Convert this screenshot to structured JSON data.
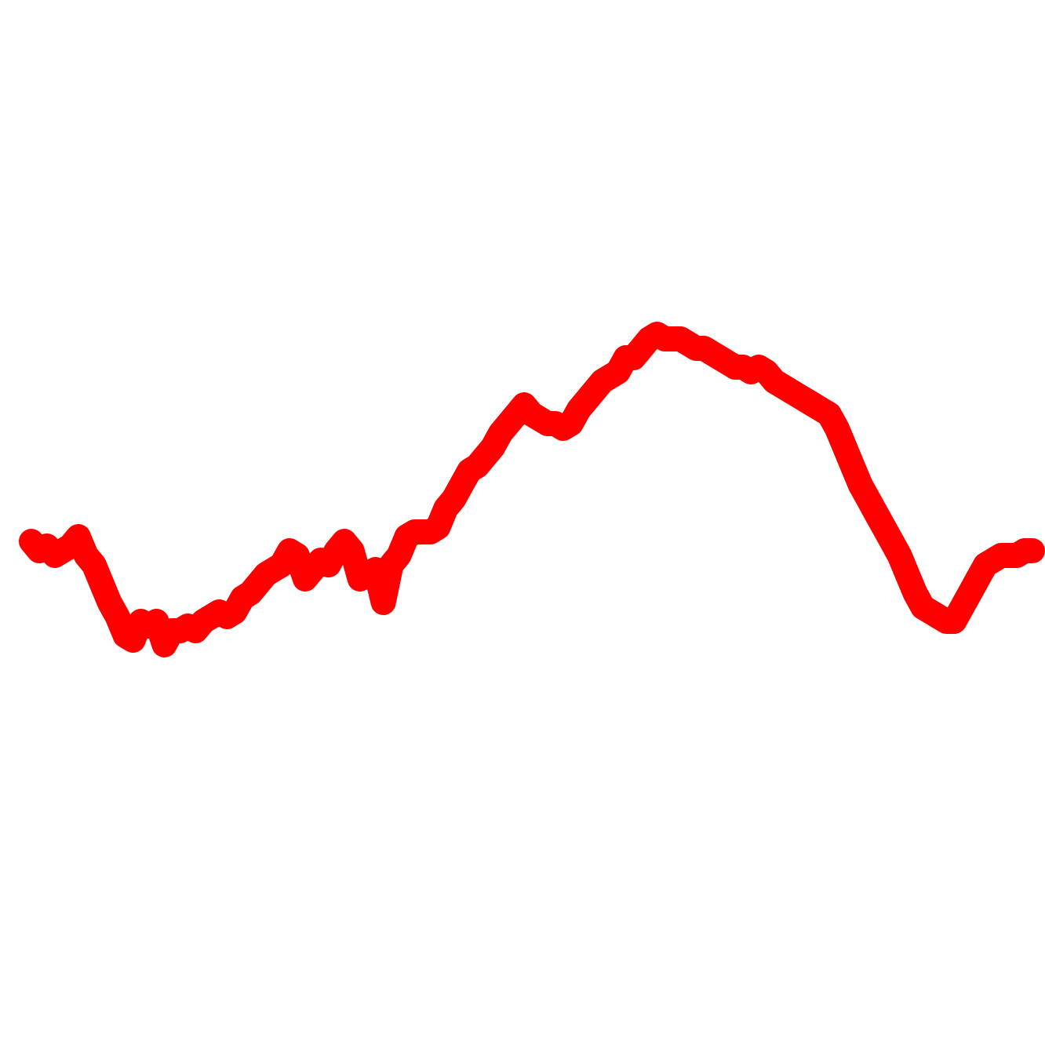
{
  "chart_data": {
    "type": "line",
    "title": "",
    "xlabel": "",
    "ylabel": "",
    "grid": false,
    "axes_visible": false,
    "line_color": "#ff0000",
    "xlim": [
      0,
      130
    ],
    "ylim": [
      -1.0,
      1.0
    ],
    "series": [
      {
        "values": [
          -0.05,
          -0.07,
          -0.06,
          -0.08,
          -0.07,
          -0.06,
          -0.04,
          -0.08,
          -0.1,
          -0.14,
          -0.18,
          -0.21,
          -0.25,
          -0.26,
          -0.22,
          -0.23,
          -0.22,
          -0.27,
          -0.24,
          -0.24,
          -0.23,
          -0.24,
          -0.22,
          -0.21,
          -0.2,
          -0.21,
          -0.2,
          -0.17,
          -0.16,
          -0.14,
          -0.12,
          -0.11,
          -0.1,
          -0.07,
          -0.08,
          -0.13,
          -0.11,
          -0.09,
          -0.1,
          -0.07,
          -0.05,
          -0.07,
          -0.13,
          -0.12,
          -0.11,
          -0.18,
          -0.1,
          -0.08,
          -0.04,
          -0.03,
          -0.03,
          -0.03,
          -0.02,
          0.02,
          0.04,
          0.07,
          0.1,
          0.11,
          0.13,
          0.15,
          0.18,
          0.2,
          0.22,
          0.24,
          0.22,
          0.21,
          0.2,
          0.2,
          0.19,
          0.2,
          0.23,
          0.25,
          0.27,
          0.29,
          0.3,
          0.31,
          0.34,
          0.34,
          0.36,
          0.38,
          0.39,
          0.38,
          0.38,
          0.38,
          0.37,
          0.36,
          0.36,
          0.35,
          0.34,
          0.33,
          0.32,
          0.32,
          0.31,
          0.32,
          0.31,
          0.29,
          0.28,
          0.27,
          0.26,
          0.25,
          0.24,
          0.23,
          0.22,
          0.19,
          0.15,
          0.11,
          0.07,
          0.04,
          0.01,
          -0.02,
          -0.05,
          -0.08,
          -0.12,
          -0.16,
          -0.19,
          -0.2,
          -0.21,
          -0.22,
          -0.22,
          -0.19,
          -0.16,
          -0.13,
          -0.1,
          -0.09,
          -0.08,
          -0.08,
          -0.08,
          -0.07,
          -0.07
        ]
      }
    ]
  }
}
